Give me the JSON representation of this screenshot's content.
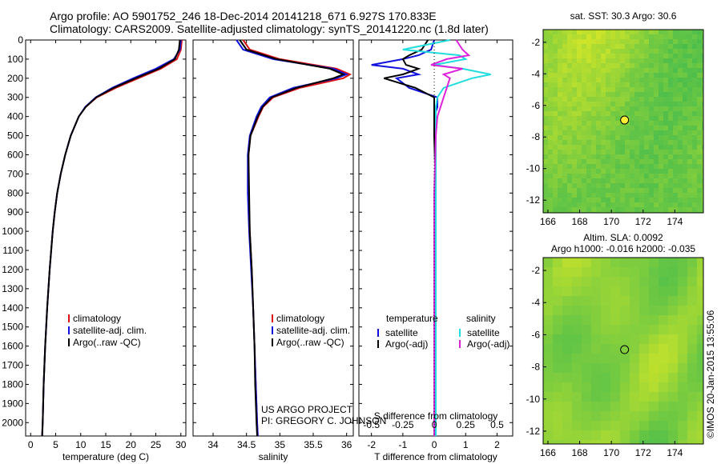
{
  "header": {
    "line1": "Argo profile: AO 5901752_246 18-Dec-2014 20141218_671 6.927S 170.833E",
    "line2": "Climatology: CARS2009. Satellite-adjusted climatology: synTS_20141220.nc (1.8d later)"
  },
  "colors": {
    "climatology": "#dd1111",
    "satellite": "#1111dd",
    "argo": "#000000",
    "sat_salinity": "#22dddd",
    "argo_salinity": "#dd22dd",
    "map_green": "#44c23a",
    "map_yellow": "#b5e35a"
  },
  "chart_data": [
    {
      "type": "line",
      "panel": "temperature",
      "xlabel": "temperature (deg C)",
      "xlim": [
        -1,
        31
      ],
      "xticks": [
        0,
        5,
        10,
        15,
        20,
        25,
        30
      ],
      "ylim": [
        2070,
        0
      ],
      "yticks": [
        0,
        100,
        200,
        300,
        400,
        500,
        600,
        700,
        800,
        900,
        1000,
        1100,
        1200,
        1300,
        1400,
        1500,
        1600,
        1700,
        1800,
        1900,
        2000
      ],
      "legend": [
        "climatology",
        "satellite-adj. clim.",
        "Argo(..raw -QC)"
      ],
      "depth": [
        0,
        50,
        100,
        150,
        200,
        250,
        300,
        350,
        400,
        500,
        600,
        700,
        800,
        900,
        1000,
        1200,
        1400,
        1600,
        1800,
        2000,
        2070
      ],
      "series": [
        {
          "name": "climatology",
          "values": [
            30.2,
            30.0,
            29.2,
            26.0,
            21.5,
            17.0,
            13.2,
            11.0,
            9.6,
            8.0,
            6.9,
            6.0,
            5.3,
            4.8,
            4.4,
            3.8,
            3.3,
            2.9,
            2.6,
            2.4,
            2.3
          ]
        },
        {
          "name": "satellite-adj. clim.",
          "values": [
            30.0,
            29.8,
            28.6,
            25.0,
            20.5,
            16.3,
            13.0,
            10.9,
            9.6,
            8.0,
            6.9,
            6.0,
            5.3,
            4.8,
            4.4,
            3.8,
            3.3,
            2.9,
            2.6,
            2.4,
            2.3
          ]
        },
        {
          "name": "Argo(..raw -QC)",
          "values": [
            29.8,
            29.6,
            28.8,
            25.6,
            21.0,
            16.6,
            13.1,
            11.0,
            9.6,
            8.0,
            6.9,
            6.0,
            5.3,
            4.8,
            4.4,
            3.8,
            3.3,
            2.9,
            2.6,
            2.4,
            2.3
          ]
        }
      ]
    },
    {
      "type": "line",
      "panel": "salinity",
      "xlabel": "salinity",
      "xlim": [
        33.7,
        36.1
      ],
      "xticks": [
        34,
        34.5,
        35,
        35.5,
        36
      ],
      "xtick_labels": [
        "34",
        "34.5",
        "35",
        "35.5",
        "36"
      ],
      "ylim": [
        2070,
        0
      ],
      "legend": [
        "climatology",
        "satellite-adj. clim.",
        "Argo(..raw -QC)"
      ],
      "depth": [
        0,
        50,
        100,
        150,
        180,
        200,
        250,
        300,
        350,
        400,
        500,
        600,
        800,
        1000,
        1200,
        1400,
        1600,
        1800,
        2000,
        2070
      ],
      "series": [
        {
          "name": "climatology",
          "values": [
            34.45,
            34.55,
            35.0,
            35.85,
            36.05,
            35.95,
            35.3,
            34.9,
            34.75,
            34.68,
            34.56,
            34.53,
            34.53,
            34.55,
            34.58,
            34.6,
            34.62,
            34.64,
            34.66,
            34.67
          ]
        },
        {
          "name": "satellite-adj. clim.",
          "values": [
            34.35,
            34.45,
            34.9,
            35.8,
            36.0,
            35.85,
            35.2,
            34.85,
            34.72,
            34.65,
            34.55,
            34.52,
            34.52,
            34.54,
            34.57,
            34.6,
            34.62,
            34.64,
            34.66,
            34.67
          ]
        },
        {
          "name": "Argo(..raw -QC)",
          "values": [
            34.4,
            34.5,
            34.95,
            35.75,
            35.95,
            35.8,
            35.25,
            34.88,
            34.74,
            34.67,
            34.56,
            34.53,
            34.54,
            34.55,
            34.58,
            34.6,
            34.62,
            34.63,
            34.65,
            34.66
          ]
        }
      ]
    },
    {
      "type": "line",
      "panel": "differences",
      "xlabel": "T difference from climatology",
      "xlabel_top": "S difference from climatology",
      "xlim": [
        -2.4,
        2.5
      ],
      "xticks": [
        -2,
        -1,
        0,
        1,
        2
      ],
      "s_tick_labels": [
        "-0.5",
        "-0.25",
        "0",
        "0.25",
        "0.5"
      ],
      "ylim": [
        2070,
        0
      ],
      "legend_temperature": [
        "temperature",
        "satellite",
        "Argo(-adj)"
      ],
      "legend_salinity": [
        "salinity",
        "satellite",
        "Argo(-adj)"
      ],
      "depth": [
        0,
        50,
        80,
        100,
        130,
        150,
        180,
        200,
        250,
        300,
        350,
        400,
        500,
        800,
        1200,
        1600,
        2000,
        2070
      ],
      "series": [
        {
          "name": "temperature satellite",
          "values": [
            0.0,
            -0.1,
            -0.5,
            -1.0,
            -2.0,
            -1.0,
            -0.5,
            -1.2,
            -0.8,
            0.1,
            0.1,
            0.0,
            0.05,
            0.05,
            0.05,
            0.05,
            0.05,
            0.05
          ]
        },
        {
          "name": "temperature Argo(-adj)",
          "values": [
            -0.2,
            -0.4,
            -0.8,
            -1.0,
            -0.9,
            -0.5,
            -1.0,
            -1.6,
            -0.6,
            0.0,
            0.0,
            0.0,
            0.0,
            0.05,
            0.05,
            0.05,
            0.05,
            0.05
          ]
        },
        {
          "name": "salinity satellite",
          "values": [
            0.5,
            -1.0,
            0.8,
            1.0,
            0.0,
            0.9,
            1.8,
            1.2,
            0.3,
            0.1,
            0.05,
            0.05,
            0.05,
            0.05,
            0.05,
            0.05,
            0.05,
            0.05
          ]
        },
        {
          "name": "salinity Argo(-adj)",
          "values": [
            0.7,
            0.9,
            1.1,
            0.4,
            -0.1,
            0.9,
            0.3,
            0.5,
            0.4,
            0.3,
            0.2,
            0.1,
            0.05,
            0.0,
            0.0,
            0.0,
            0.0,
            0.0
          ]
        }
      ]
    },
    {
      "type": "heatmap",
      "panel": "sst-map",
      "title": "sat. SST: 30.3  Argo: 30.6",
      "xlim": [
        165.7,
        175.8
      ],
      "ylim": [
        -12.8,
        -1.2
      ],
      "xticks": [
        166,
        168,
        170,
        172,
        174
      ],
      "yticks": [
        -2,
        -4,
        -6,
        -8,
        -10,
        -12
      ],
      "marker": {
        "lon": 170.833,
        "lat": -6.927
      }
    },
    {
      "type": "heatmap",
      "panel": "sla-map",
      "title": "Altim. SLA: 0.0092",
      "subtitle": "Argo h1000: -0.016  h2000: -0.035",
      "xlim": [
        165.7,
        175.8
      ],
      "ylim": [
        -12.8,
        -1.2
      ],
      "xticks": [
        166,
        168,
        170,
        172,
        174
      ],
      "yticks": [
        -2,
        -4,
        -6,
        -8,
        -10,
        -12
      ],
      "marker": {
        "lon": 170.833,
        "lat": -6.927
      }
    }
  ],
  "annotations": {
    "project": "US ARGO PROJECT",
    "pi": "PI: GREGORY C. JOHNSON",
    "credit": "©IMOS 20-Jan-2015 13:55:06"
  }
}
